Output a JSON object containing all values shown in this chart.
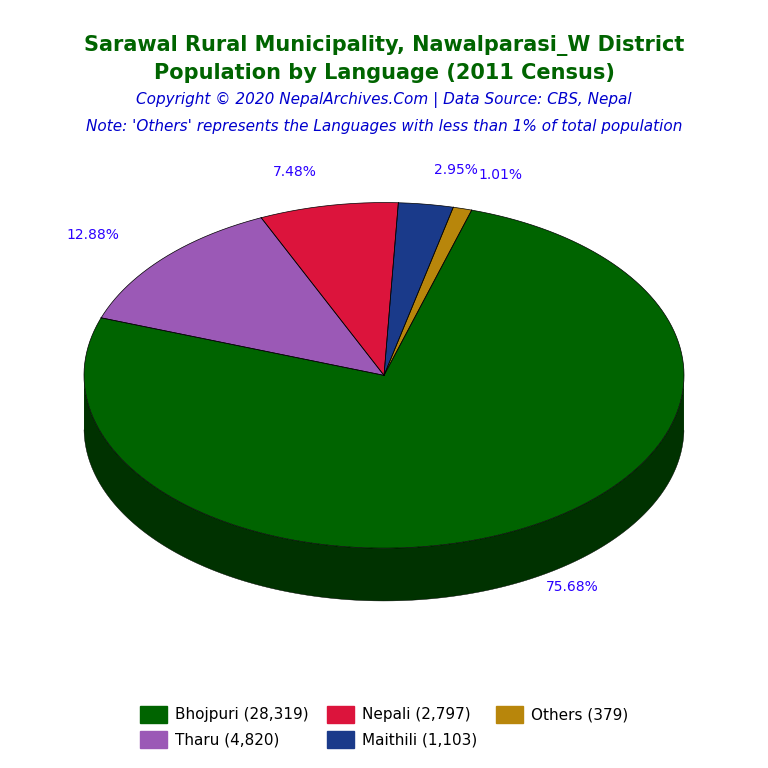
{
  "title_line1": "Sarawal Rural Municipality, Nawalparasi_W District",
  "title_line2": "Population by Language (2011 Census)",
  "title_color": "#006400",
  "copyright_text": "Copyright © 2020 NepalArchives.Com | Data Source: CBS, Nepal",
  "copyright_color": "#0000CD",
  "note_text": "Note: 'Others' represents the Languages with less than 1% of total population",
  "note_color": "#0000CD",
  "labels": [
    "Bhojpuri (28,319)",
    "Tharu (4,820)",
    "Nepali (2,797)",
    "Maithili (1,103)",
    "Others (379)"
  ],
  "values": [
    28319,
    4820,
    2797,
    1103,
    379
  ],
  "percentages": [
    "75.68%",
    "12.88%",
    "7.48%",
    "2.95%",
    "1.01%"
  ],
  "colors": [
    "#006400",
    "#9B59B6",
    "#DC143C",
    "#1A3A8A",
    "#B8860B"
  ],
  "shadow_colors": [
    "#003200",
    "#5B2C6F",
    "#7B241C",
    "#0D1F4E",
    "#7D6608"
  ],
  "background_color": "#FFFFFF",
  "legend_fontsize": 11,
  "title_fontsize": 15,
  "copyright_fontsize": 11,
  "note_fontsize": 11,
  "pct_color": "#2B00FF"
}
